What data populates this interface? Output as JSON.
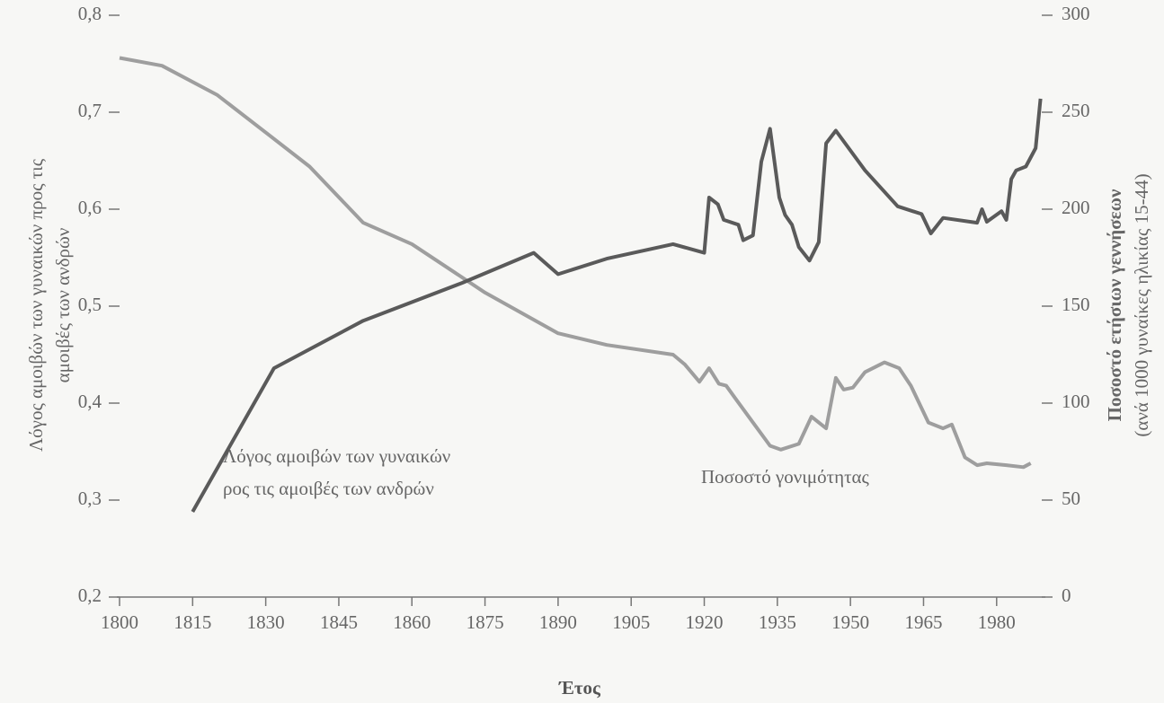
{
  "chart_data": {
    "type": "line",
    "xlabel": "Έτος",
    "ylabel": [
      "Λόγος αμοιβών των γυναικών προς τις",
      "αμοιβές των ανδρών"
    ],
    "y2label": [
      "Ποσοστό ετήσιων γεννήσεων",
      "(ανά 1000 γυναίκες ηλικίας 15-44)"
    ],
    "annotations": [
      "Λόγος αμοιβών των γυναικών",
      "ρος τις αμοιβές των ανδρών",
      "Ποσοστό γονιμότητας"
    ],
    "xlim": [
      1800,
      1990
    ],
    "xticks": [
      1800,
      1815,
      1830,
      1845,
      1860,
      1875,
      1890,
      1905,
      1920,
      1935,
      1950,
      1965,
      1980
    ],
    "ylim": [
      0.2,
      0.8
    ],
    "yticks": [
      {
        "value": 0.2,
        "label": "0,2"
      },
      {
        "value": 0.3,
        "label": "0,3"
      },
      {
        "value": 0.4,
        "label": "0,4"
      },
      {
        "value": 0.5,
        "label": "0,5"
      },
      {
        "value": 0.6,
        "label": "0,6"
      },
      {
        "value": 0.7,
        "label": "0,7"
      },
      {
        "value": 0.8,
        "label": "0,8"
      }
    ],
    "y2lim": [
      0,
      300
    ],
    "y2ticks": [
      0,
      50,
      100,
      150,
      200,
      250,
      300
    ],
    "series": [
      {
        "color": "#5a5a5a",
        "axis": "y",
        "x": [
          1815,
          1831.7,
          1850,
          1870.3,
          1885,
          1890,
          1900,
          1913.6,
          1920,
          1921,
          1922.8,
          1924,
          1927,
          1928,
          1930,
          1931.7,
          1933.5,
          1935.4,
          1936.6,
          1938,
          1939.4,
          1941.6,
          1943.5,
          1945,
          1947,
          1953,
          1959.7,
          1964.6,
          1966.5,
          1969,
          1976,
          1977,
          1978,
          1981,
          1982,
          1983,
          1984,
          1986,
          1988,
          1989
        ],
        "values": [
          0.288,
          0.436,
          0.485,
          0.524,
          0.555,
          0.533,
          0.549,
          0.564,
          0.555,
          0.612,
          0.605,
          0.589,
          0.584,
          0.568,
          0.573,
          0.649,
          0.683,
          0.612,
          0.594,
          0.584,
          0.561,
          0.547,
          0.566,
          0.668,
          0.681,
          0.64,
          0.603,
          0.595,
          0.575,
          0.591,
          0.586,
          0.6,
          0.587,
          0.598,
          0.589,
          0.631,
          0.64,
          0.644,
          0.663,
          0.714
        ]
      },
      {
        "color": "#9e9e9e",
        "axis": "y2",
        "x": [
          1800,
          1808.7,
          1820,
          1830.8,
          1839,
          1850,
          1860,
          1875,
          1890,
          1900,
          1913.6,
          1916,
          1919,
          1921,
          1923,
          1924.5,
          1926.5,
          1930,
          1933.5,
          1935.7,
          1939.4,
          1942,
          1943.5,
          1945,
          1947,
          1948.6,
          1950.5,
          1953,
          1957,
          1960,
          1962.4,
          1966,
          1969,
          1970.8,
          1973.5,
          1976,
          1978,
          1982,
          1985.5,
          1987
        ],
        "values": [
          278,
          274,
          259,
          238,
          222,
          193,
          182,
          157,
          136,
          130,
          125,
          120,
          111,
          118,
          110,
          109,
          102,
          90,
          78,
          76,
          79,
          93,
          90,
          87,
          113,
          107,
          108,
          116,
          121,
          118,
          109,
          90,
          87,
          89,
          72,
          68,
          69,
          68,
          67,
          69
        ]
      }
    ]
  }
}
